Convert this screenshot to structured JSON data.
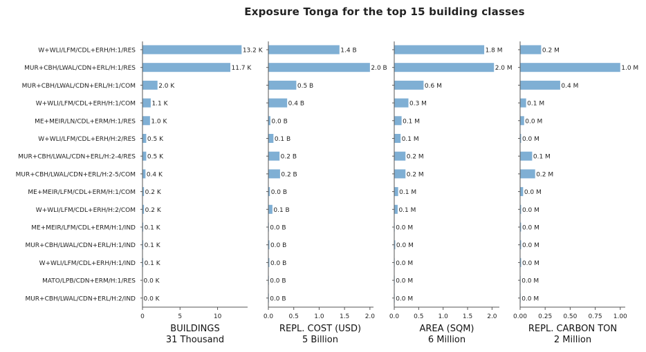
{
  "chart_data": {
    "type": "bar",
    "orientation": "horizontal",
    "title": "Exposure Tonga for the top 15 building classes",
    "grid": false,
    "categories": [
      "W+WLI/LFM/CDL+ERH/H:1/RES",
      "MUR+CBH/LWAL/CDN+ERL/H:1/RES",
      "MUR+CBH/LWAL/CDN+ERL/H:1/COM",
      "W+WLI/LFM/CDL+ERH/H:1/COM",
      "ME+MEIR/LN/CDL+ERM/H:1/RES",
      "W+WLI/LFM/CDL+ERH/H:2/RES",
      "MUR+CBH/LWAL/CDN+ERL/H:2-4/RES",
      "MUR+CBH/LWAL/CDN+ERL/H:2-5/COM",
      "ME+MEIR/LFM/CDL+ERM/H:1/COM",
      "W+WLI/LFM/CDL+ERH/H:2/COM",
      "ME+MEIR/LFM/CDL+ERM/H:1/IND",
      "MUR+CBH/LWAL/CDN+ERL/H:1/IND",
      "W+WLI/LFM/CDL+ERH/H:1/IND",
      "MATO/LPB/CDN+ERM/H:1/RES",
      "MUR+CBH/LWAL/CDN+ERL/H:2/IND"
    ],
    "bar_color": "#7fafd4",
    "panels": [
      {
        "xlabel": "BUILDINGS",
        "subtitle": "31 Thousand",
        "xlim": [
          0,
          14
        ],
        "ticks": [
          0,
          5,
          10
        ],
        "tick_labels": [
          "0",
          "5",
          "10"
        ],
        "values": [
          13.2,
          11.7,
          2.0,
          1.1,
          1.0,
          0.5,
          0.5,
          0.4,
          0.2,
          0.2,
          0.1,
          0.1,
          0.1,
          0.0,
          0.0
        ],
        "labels": [
          "13.2 K",
          "11.7 K",
          "2.0 K",
          "1.1 K",
          "1.0 K",
          "0.5 K",
          "0.5 K",
          "0.4 K",
          "0.2 K",
          "0.2 K",
          "0.1 K",
          "0.1 K",
          "0.1 K",
          "0.0 K",
          "0.0 K"
        ]
      },
      {
        "xlabel": "REPL. COST (USD)",
        "subtitle": "5 Billion",
        "xlim": [
          0,
          2.07
        ],
        "ticks": [
          0,
          0.5,
          1,
          1.5,
          2
        ],
        "tick_labels": [
          "0.0",
          "0.5",
          "1.0",
          "1.5",
          "2.0"
        ],
        "values": [
          1.4,
          2.0,
          0.55,
          0.37,
          0.04,
          0.1,
          0.22,
          0.23,
          0.03,
          0.08,
          0.01,
          0.02,
          0.02,
          0.01,
          0.01
        ],
        "labels": [
          "1.4 B",
          "2.0 B",
          "0.5 B",
          "0.4 B",
          "0.0 B",
          "0.1 B",
          "0.2 B",
          "0.2 B",
          "0.0 B",
          "0.1 B",
          "0.0 B",
          "0.0 B",
          "0.0 B",
          "0.0 B",
          "0.0 B"
        ]
      },
      {
        "xlabel": "AREA (SQM)",
        "subtitle": "6 Million",
        "xlim": [
          0,
          2.15
        ],
        "ticks": [
          0,
          0.5,
          1,
          1.5,
          2
        ],
        "tick_labels": [
          "0.0",
          "0.5",
          "1.0",
          "1.5",
          "2.0"
        ],
        "values": [
          1.84,
          2.04,
          0.6,
          0.29,
          0.15,
          0.13,
          0.23,
          0.23,
          0.08,
          0.07,
          0.01,
          0.02,
          0.01,
          0.01,
          0.01
        ],
        "labels": [
          "1.8 M",
          "2.0 M",
          "0.6 M",
          "0.3 M",
          "0.1 M",
          "0.1 M",
          "0.2 M",
          "0.2 M",
          "0.1 M",
          "0.1 M",
          "0.0 M",
          "0.0 M",
          "0.0 M",
          "0.0 M",
          "0.0 M"
        ]
      },
      {
        "xlabel": "REPL. CARBON TON",
        "subtitle": "2 Million",
        "xlim": [
          0,
          1.05
        ],
        "ticks": [
          0,
          0.25,
          0.5,
          0.75,
          1.0
        ],
        "tick_labels": [
          "0.00",
          "0.25",
          "0.50",
          "0.75",
          "1.00"
        ],
        "values": [
          0.21,
          1.0,
          0.4,
          0.06,
          0.04,
          0.01,
          0.12,
          0.15,
          0.03,
          0.01,
          0.01,
          0.01,
          0.01,
          0.005,
          0.005
        ],
        "labels": [
          "0.2 M",
          "1.0 M",
          "0.4 M",
          "0.1 M",
          "0.0 M",
          "0.0 M",
          "0.1 M",
          "0.2 M",
          "0.0 M",
          "0.0 M",
          "0.0 M",
          "0.0 M",
          "0.0 M",
          "0.0 M",
          "0.0 M"
        ]
      }
    ]
  }
}
